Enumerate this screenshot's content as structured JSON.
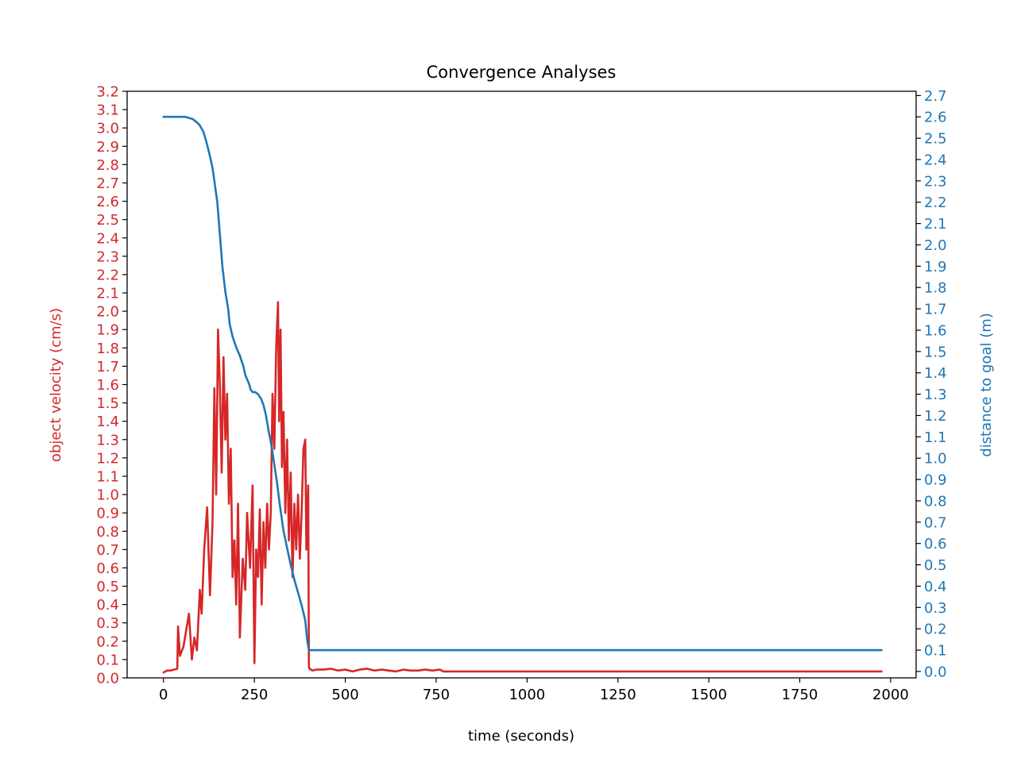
{
  "chart_data": {
    "type": "line",
    "title": "Convergence Analyses",
    "xlabel": "time (seconds)",
    "ylabel_left": "object velocity (cm/s)",
    "ylabel_right": "distance to goal (m)",
    "xlim": [
      -100,
      2070
    ],
    "ylim_left": [
      0.0,
      3.2
    ],
    "ylim_right": [
      -0.03,
      2.72
    ],
    "x_ticks": [
      "0",
      "250",
      "500",
      "750",
      "1000",
      "1250",
      "1500",
      "1750",
      "2000"
    ],
    "y_left_ticks": [
      "0.0",
      "0.1",
      "0.2",
      "0.3",
      "0.4",
      "0.5",
      "0.6",
      "0.7",
      "0.8",
      "0.9",
      "1.0",
      "1.1",
      "1.2",
      "1.3",
      "1.4",
      "1.5",
      "1.6",
      "1.7",
      "1.8",
      "1.9",
      "2.0",
      "2.1",
      "2.2",
      "2.3",
      "2.4",
      "2.5",
      "2.6",
      "2.7",
      "2.8",
      "2.9",
      "3.0",
      "3.1",
      "3.2"
    ],
    "y_right_ticks": [
      "0.0",
      "0.1",
      "0.2",
      "0.3",
      "0.4",
      "0.5",
      "0.6",
      "0.7",
      "0.8",
      "0.9",
      "1.0",
      "1.1",
      "1.2",
      "1.3",
      "1.4",
      "1.5",
      "1.6",
      "1.7",
      "1.8",
      "1.9",
      "2.0",
      "2.1",
      "2.2",
      "2.3",
      "2.4",
      "2.5",
      "2.6",
      "2.7"
    ],
    "grid": false,
    "colors": {
      "velocity": "#d62728",
      "distance": "#1f77b4",
      "axis": "#000000"
    },
    "series": [
      {
        "axis": "left",
        "color": "#d62728",
        "x": [
          0,
          10,
          20,
          38,
          40,
          45,
          55,
          70,
          78,
          85,
          92,
          100,
          105,
          112,
          120,
          128,
          135,
          140,
          145,
          150,
          155,
          160,
          165,
          170,
          175,
          180,
          185,
          190,
          195,
          200,
          205,
          210,
          218,
          225,
          230,
          238,
          245,
          250,
          255,
          260,
          265,
          270,
          275,
          280,
          285,
          290,
          295,
          300,
          305,
          310,
          315,
          318,
          322,
          326,
          330,
          335,
          340,
          345,
          350,
          355,
          360,
          365,
          370,
          375,
          380,
          385,
          390,
          393,
          398,
          400,
          402,
          410,
          420,
          440,
          460,
          480,
          500,
          520,
          540,
          560,
          580,
          600,
          620,
          640,
          660,
          680,
          700,
          720,
          740,
          760,
          770,
          800,
          1000,
          1200,
          1400,
          1600,
          1800,
          1975
        ],
        "y": [
          0.03,
          0.04,
          0.04,
          0.05,
          0.28,
          0.12,
          0.17,
          0.35,
          0.1,
          0.22,
          0.15,
          0.48,
          0.35,
          0.7,
          0.93,
          0.45,
          0.85,
          1.58,
          1.0,
          1.9,
          1.6,
          1.12,
          1.75,
          1.3,
          1.55,
          0.95,
          1.25,
          0.55,
          0.75,
          0.4,
          0.95,
          0.22,
          0.65,
          0.48,
          0.9,
          0.6,
          1.05,
          0.08,
          0.7,
          0.55,
          0.92,
          0.4,
          0.85,
          0.6,
          0.95,
          0.7,
          0.9,
          1.55,
          1.25,
          1.8,
          2.05,
          1.4,
          1.9,
          1.15,
          1.45,
          0.9,
          1.3,
          0.75,
          1.12,
          0.55,
          0.95,
          0.7,
          1.0,
          0.65,
          0.9,
          1.25,
          1.3,
          0.7,
          1.05,
          0.06,
          0.05,
          0.04,
          0.045,
          0.045,
          0.05,
          0.04,
          0.045,
          0.035,
          0.045,
          0.05,
          0.04,
          0.045,
          0.04,
          0.035,
          0.045,
          0.04,
          0.04,
          0.045,
          0.04,
          0.045,
          0.035,
          0.035,
          0.035,
          0.035,
          0.035,
          0.035,
          0.035,
          0.035
        ]
      },
      {
        "axis": "right",
        "color": "#1f77b4",
        "x": [
          0,
          20,
          40,
          60,
          80,
          95,
          100,
          110,
          120,
          130,
          135,
          140,
          148,
          155,
          162,
          170,
          178,
          182,
          190,
          200,
          210,
          220,
          225,
          235,
          240,
          245,
          252,
          260,
          268,
          275,
          282,
          290,
          298,
          305,
          312,
          320,
          330,
          340,
          350,
          360,
          370,
          380,
          390,
          395,
          400,
          420,
          500,
          750,
          1000,
          1500,
          1975
        ],
        "y": [
          2.6,
          2.6,
          2.6,
          2.6,
          2.59,
          2.57,
          2.56,
          2.53,
          2.47,
          2.4,
          2.36,
          2.3,
          2.2,
          2.05,
          1.9,
          1.78,
          1.7,
          1.63,
          1.57,
          1.52,
          1.48,
          1.43,
          1.39,
          1.35,
          1.32,
          1.31,
          1.31,
          1.3,
          1.28,
          1.25,
          1.2,
          1.12,
          1.05,
          0.97,
          0.89,
          0.78,
          0.66,
          0.58,
          0.5,
          0.43,
          0.37,
          0.31,
          0.24,
          0.15,
          0.1,
          0.1,
          0.1,
          0.1,
          0.1,
          0.1,
          0.1
        ]
      }
    ]
  }
}
